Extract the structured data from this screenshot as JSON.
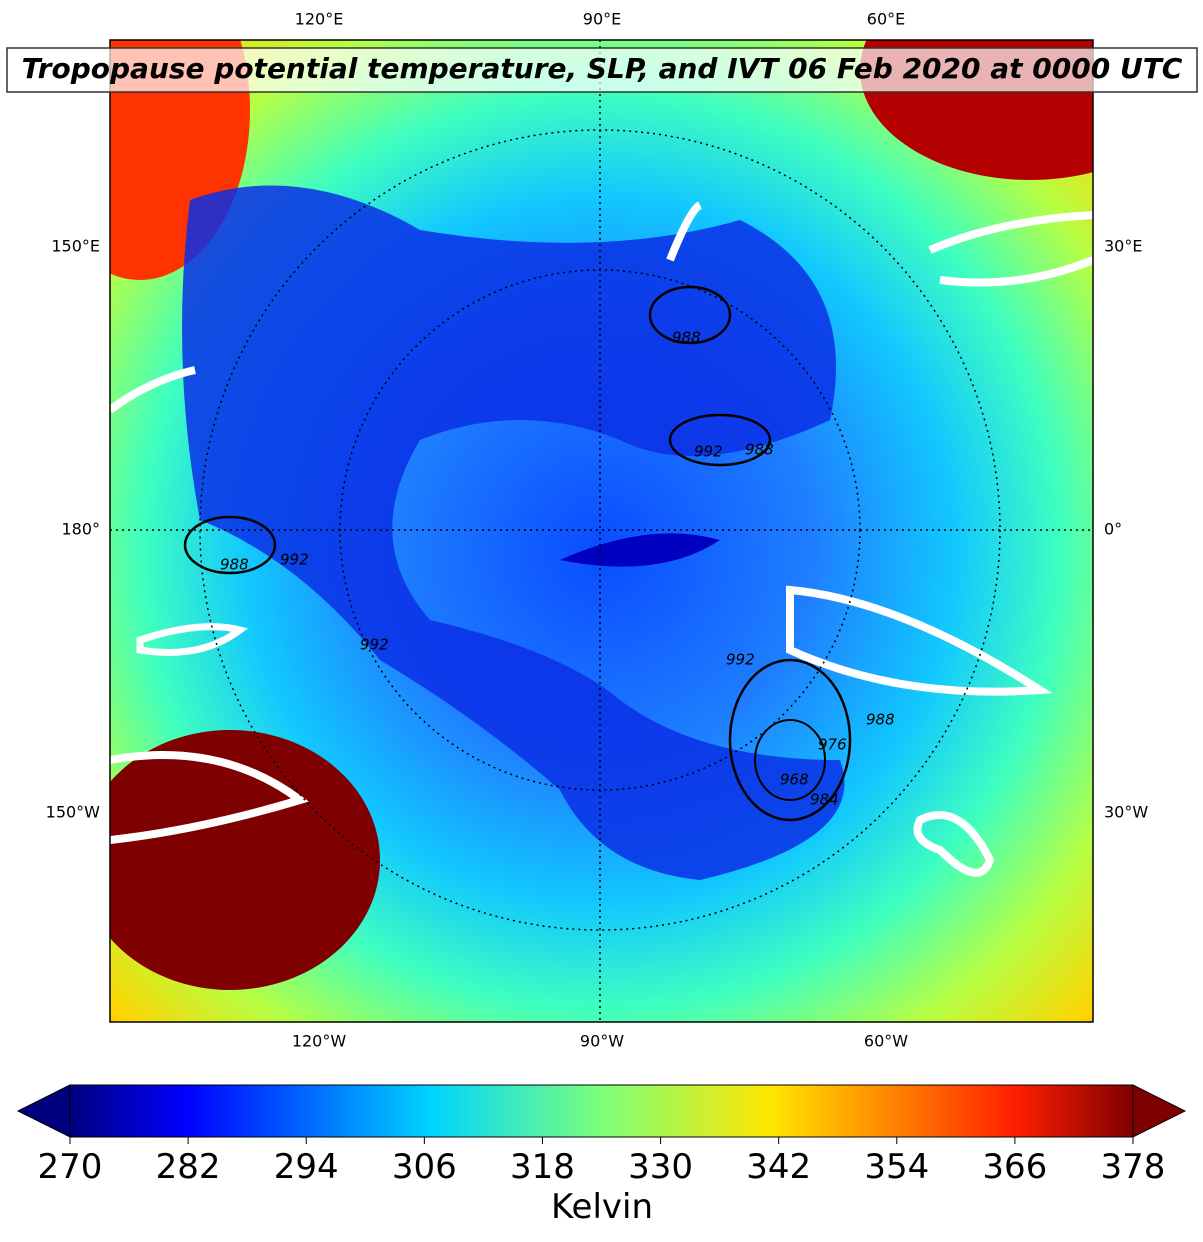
{
  "header": {
    "title": "Tropopause potential temperature, SLP, and IVT 06 Feb 2020 at 0000 UTC"
  },
  "map": {
    "top_labels": [
      "120°E",
      "90°E",
      "60°E"
    ],
    "left_labels": [
      "150°E",
      "180°",
      "150°W"
    ],
    "right_labels": [
      "30°E",
      "0°",
      "30°W"
    ],
    "bottom_labels": [
      "120°W",
      "90°W",
      "60°W"
    ],
    "contour_labels": [
      "988",
      "992",
      "988",
      "992",
      "992",
      "988",
      "984",
      "968",
      "976",
      "988",
      "992"
    ]
  },
  "colorbar": {
    "label": "Kelvin",
    "lim": [
      270,
      378
    ],
    "ticks": [
      270,
      282,
      294,
      306,
      318,
      330,
      342,
      354,
      366,
      378
    ]
  }
}
